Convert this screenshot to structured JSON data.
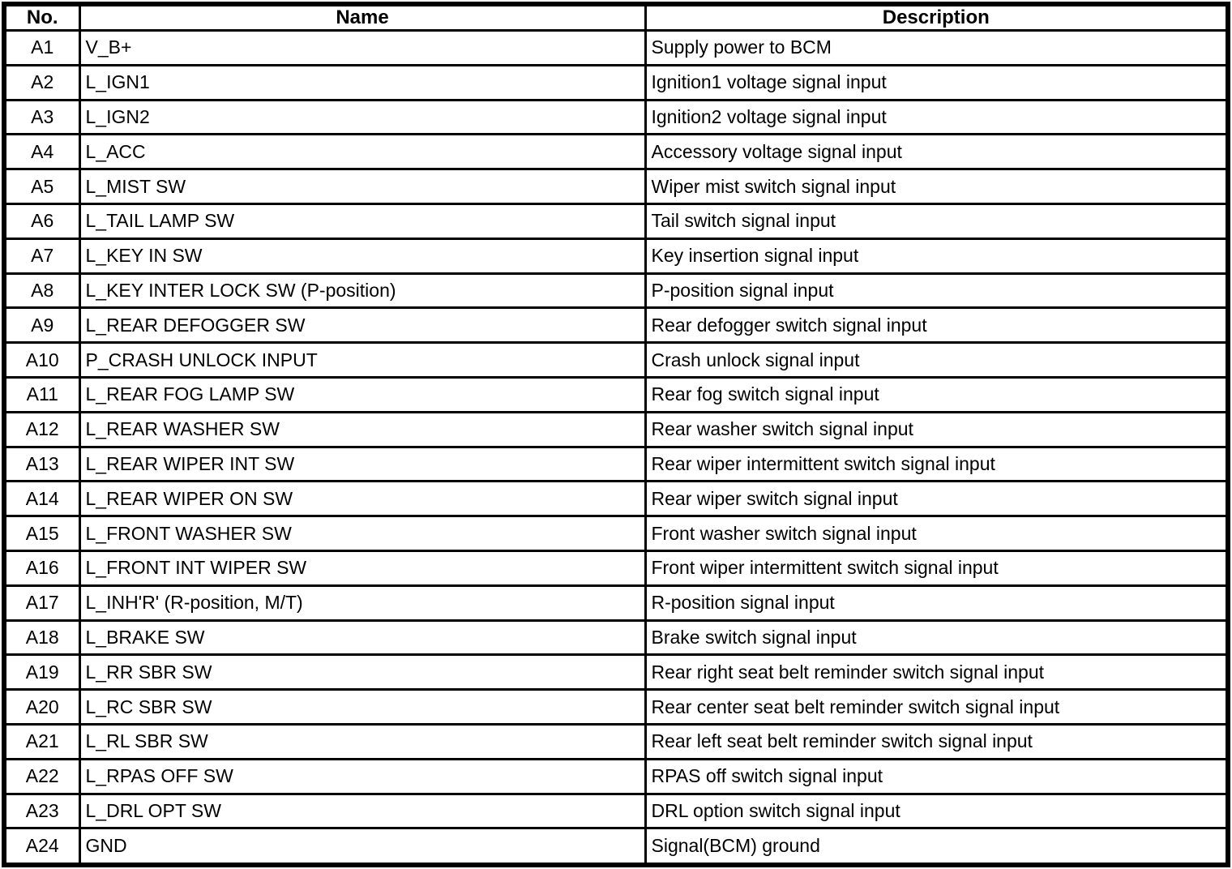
{
  "table": {
    "columns": [
      "No.",
      "Name",
      "Description"
    ],
    "rows": [
      {
        "no": "A1",
        "name": "V_B+",
        "description": "Supply power to BCM"
      },
      {
        "no": "A2",
        "name": "L_IGN1",
        "description": "Ignition1 voltage signal input"
      },
      {
        "no": "A3",
        "name": "L_IGN2",
        "description": "Ignition2 voltage signal input"
      },
      {
        "no": "A4",
        "name": "L_ACC",
        "description": "Accessory voltage signal input"
      },
      {
        "no": "A5",
        "name": "L_MIST SW",
        "description": "Wiper mist switch signal input"
      },
      {
        "no": "A6",
        "name": "L_TAIL LAMP SW",
        "description": "Tail switch signal input"
      },
      {
        "no": "A7",
        "name": "L_KEY IN SW",
        "description": "Key insertion signal input"
      },
      {
        "no": "A8",
        "name": "L_KEY INTER LOCK SW (P-position)",
        "description": "P-position signal input"
      },
      {
        "no": "A9",
        "name": "L_REAR DEFOGGER SW",
        "description": "Rear defogger switch signal input"
      },
      {
        "no": "A10",
        "name": "P_CRASH UNLOCK INPUT",
        "description": "Crash unlock signal input"
      },
      {
        "no": "A11",
        "name": "L_REAR FOG LAMP SW",
        "description": "Rear fog switch signal input"
      },
      {
        "no": "A12",
        "name": "L_REAR WASHER SW",
        "description": "Rear washer switch signal input"
      },
      {
        "no": "A13",
        "name": "L_REAR WIPER INT SW",
        "description": "Rear wiper intermittent switch signal input"
      },
      {
        "no": "A14",
        "name": "L_REAR WIPER ON SW",
        "description": "Rear wiper switch signal input"
      },
      {
        "no": "A15",
        "name": "L_FRONT WASHER SW",
        "description": "Front washer switch signal input"
      },
      {
        "no": "A16",
        "name": "L_FRONT INT WIPER SW",
        "description": "Front wiper intermittent switch signal input"
      },
      {
        "no": "A17",
        "name": "L_INH'R' (R-position, M/T)",
        "description": "R-position signal input"
      },
      {
        "no": "A18",
        "name": "L_BRAKE SW",
        "description": "Brake switch signal input"
      },
      {
        "no": "A19",
        "name": "L_RR SBR SW",
        "description": "Rear right seat belt reminder switch signal input"
      },
      {
        "no": "A20",
        "name": "L_RC SBR SW",
        "description": "Rear center seat belt reminder switch signal input"
      },
      {
        "no": "A21",
        "name": "L_RL SBR SW",
        "description": "Rear left seat belt reminder switch signal input"
      },
      {
        "no": "A22",
        "name": "L_RPAS OFF SW",
        "description": "RPAS off switch signal input"
      },
      {
        "no": "A23",
        "name": "L_DRL OPT SW",
        "description": "DRL option switch signal input"
      },
      {
        "no": "A24",
        "name": "GND",
        "description": "Signal(BCM) ground"
      }
    ]
  }
}
